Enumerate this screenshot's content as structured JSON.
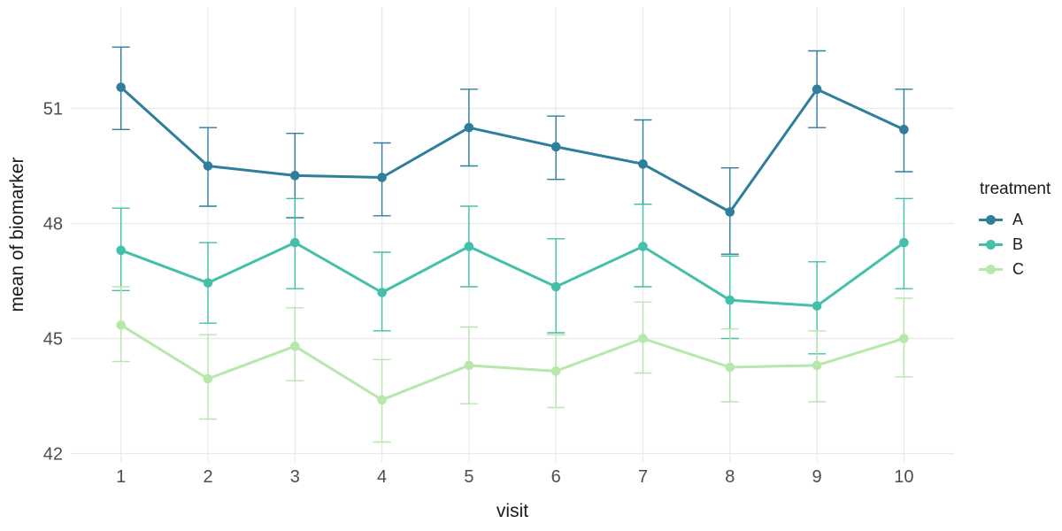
{
  "chart_data": {
    "type": "line",
    "title": "",
    "xlabel": "visit",
    "ylabel": "mean of biomarker",
    "x": [
      1,
      2,
      3,
      4,
      5,
      6,
      7,
      8,
      9,
      10
    ],
    "x_tick_labels": [
      "1",
      "2",
      "3",
      "4",
      "5",
      "6",
      "7",
      "8",
      "9",
      "10"
    ],
    "yticks": [
      42,
      45,
      48,
      51
    ],
    "ylim": [
      41.6,
      53.6
    ],
    "xlim": [
      0.42,
      10.58
    ],
    "grid": true,
    "error_bars": true,
    "legend": {
      "title": "treatment",
      "position": "right"
    },
    "series": [
      {
        "name": "A",
        "color": "#2e7e9c",
        "values": [
          51.55,
          49.5,
          49.25,
          49.2,
          50.5,
          50.0,
          49.55,
          48.3,
          51.5,
          50.45
        ],
        "error_low": [
          50.45,
          48.45,
          48.15,
          48.2,
          49.5,
          49.15,
          48.5,
          47.2,
          50.5,
          49.35
        ],
        "error_high": [
          52.6,
          50.5,
          50.35,
          50.1,
          51.5,
          50.8,
          50.7,
          49.45,
          52.5,
          51.5
        ]
      },
      {
        "name": "B",
        "color": "#42c0a8",
        "values": [
          47.3,
          46.45,
          47.5,
          46.2,
          47.4,
          46.35,
          47.4,
          46.0,
          45.85,
          47.5
        ],
        "error_low": [
          46.25,
          45.4,
          46.3,
          45.2,
          46.35,
          45.15,
          46.35,
          45.0,
          44.6,
          46.3
        ],
        "error_high": [
          48.4,
          47.5,
          48.65,
          47.25,
          48.45,
          47.6,
          48.5,
          47.15,
          47.0,
          48.65
        ]
      },
      {
        "name": "C",
        "color": "#b6e7ab",
        "values": [
          45.35,
          43.95,
          44.8,
          43.4,
          44.3,
          44.15,
          45.0,
          44.25,
          44.3,
          45.0
        ],
        "error_low": [
          44.4,
          42.9,
          43.9,
          42.3,
          43.3,
          43.2,
          44.1,
          43.35,
          43.35,
          44.0
        ],
        "error_high": [
          46.35,
          45.1,
          45.8,
          44.45,
          45.3,
          45.1,
          45.95,
          45.25,
          45.2,
          46.05
        ]
      }
    ],
    "styles": {
      "background": "#ffffff",
      "grid_color": "#e9e9e9",
      "tick_label_color": "#4d4d4d",
      "axis_title_color": "#1a1a1a"
    }
  }
}
